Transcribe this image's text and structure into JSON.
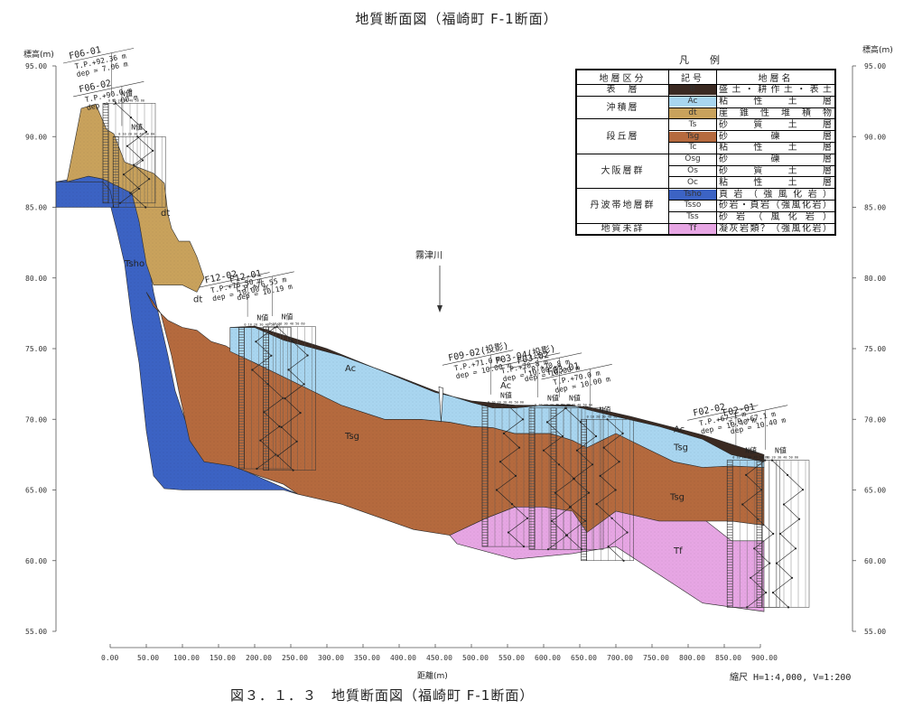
{
  "title": "地質断面図（福崎町 F-1断面）",
  "caption": "図３．１．３　地質断面図（福崎町 F-1断面）",
  "scale": "縮尺 H=1:4,000, V=1:200",
  "y_axis_left_label": "標高(m)",
  "y_axis_right_label": "標高(m)",
  "x_axis_label": "距離(m)",
  "river_label": "霧津川",
  "legend": {
    "title": "凡　例",
    "headers": [
      "地層区分",
      "記号",
      "地層名"
    ],
    "groups": [
      {
        "group": "表　層",
        "rows": [
          {
            "symbol": "B",
            "name": "盛土・耕作土・表土",
            "color": "#3b2a22"
          }
        ]
      },
      {
        "group": "沖積層",
        "rows": [
          {
            "symbol": "Ac",
            "name": "粘性土層",
            "color": "#a9d6f0"
          },
          {
            "symbol": "dt",
            "name": "崖錐性堆積物",
            "color": "#c9a25c"
          }
        ]
      },
      {
        "group": "段丘層",
        "rows": [
          {
            "symbol": "Ts",
            "name": "砂質土層",
            "color": "#ffffff"
          },
          {
            "symbol": "Tsg",
            "name": "砂礫層",
            "color": "#b56a3e"
          },
          {
            "symbol": "Tc",
            "name": "粘性土層",
            "color": "#ffffff"
          }
        ]
      },
      {
        "group": "大阪層群",
        "rows": [
          {
            "symbol": "Osg",
            "name": "砂礫層",
            "color": "#ffffff"
          },
          {
            "symbol": "Os",
            "name": "砂質土層",
            "color": "#ffffff"
          },
          {
            "symbol": "Oc",
            "name": "粘性土層",
            "color": "#ffffff"
          }
        ]
      },
      {
        "group": "丹波帯地層群",
        "rows": [
          {
            "symbol": "Tsho",
            "name": "頁岩（強風化岩）",
            "color": "#3c63c4"
          },
          {
            "symbol": "Tsso",
            "name": "砂岩・頁岩（強風化岩）",
            "color": "#ffffff"
          },
          {
            "symbol": "Tss",
            "name": "砂岩（風化岩）",
            "color": "#ffffff"
          }
        ]
      },
      {
        "group": "地質未詳",
        "rows": [
          {
            "symbol": "Tf",
            "name": "凝灰岩類？（強風化岩）",
            "color": "#e7a6e4"
          }
        ]
      }
    ]
  },
  "chart_data": {
    "type": "diagram",
    "x_ticks": [
      "0.00",
      "50.00",
      "100.00",
      "150.00",
      "200.00",
      "250.00",
      "300.00",
      "350.00",
      "400.00",
      "450.00",
      "500.00",
      "550.00",
      "600.00",
      "650.00",
      "700.00",
      "750.00",
      "800.00",
      "850.00",
      "900.00"
    ],
    "y_ticks": [
      "95.00",
      "90.00",
      "85.00",
      "80.00",
      "75.00",
      "70.00",
      "65.00",
      "60.00",
      "55.00"
    ],
    "ylim": [
      55,
      95
    ],
    "xlim": [
      0,
      900
    ]
  },
  "layer_labels": [
    {
      "text": "Tsho",
      "x": 20,
      "y": 80.8
    },
    {
      "text": "dt",
      "x": 70,
      "y": 84.4
    },
    {
      "text": "dt",
      "x": 115,
      "y": 78.3
    },
    {
      "text": "Ac",
      "x": 325,
      "y": 73.4
    },
    {
      "text": "Ac",
      "x": 540,
      "y": 72.2
    },
    {
      "text": "Tsg",
      "x": 325,
      "y": 68.6
    },
    {
      "text": "Tsg",
      "x": 780,
      "y": 67.8
    },
    {
      "text": "Ac",
      "x": 780,
      "y": 69.1
    },
    {
      "text": "Tsg",
      "x": 775,
      "y": 64.3
    },
    {
      "text": "Tf",
      "x": 780,
      "y": 60.5
    }
  ],
  "boreholes": [
    {
      "id": "F06-01",
      "tp": "T.P.+92.36 m",
      "dep": "dep = 7.06 m",
      "x": 0,
      "top": 92.36,
      "bottom": 85.3
    },
    {
      "id": "F06-02",
      "tp": "T.P.+90.0 m",
      "dep": "dep = 5.00 m",
      "x": 14,
      "top": 90.0,
      "bottom": 85.0
    },
    {
      "id": "F12-02",
      "tp": "T.P.+76.50 m",
      "dep": "dep = 10.00 m",
      "x": 188,
      "top": 76.5,
      "bottom": 66.5
    },
    {
      "id": "F12-01",
      "tp": "T.P.+76.55 m",
      "dep": "dep = 10.19 m",
      "x": 222,
      "top": 76.55,
      "bottom": 66.4
    },
    {
      "id": "F09-02(投影)",
      "tp": "T.P.+71.0 m",
      "dep": "dep = 10.00 m",
      "x": 525,
      "top": 71.0,
      "bottom": 61.0
    },
    {
      "id": "F03-04(投影)",
      "tp": "T.P.+70.8 m",
      "dep": "dep = 10.00 m",
      "x": 590,
      "top": 70.8,
      "bottom": 60.8
    },
    {
      "id": "F03-02",
      "tp": "T.P.+70.8 m",
      "dep": "dep = 10.00 m",
      "x": 620,
      "top": 70.8,
      "bottom": 60.8
    },
    {
      "id": "F03-01",
      "tp": "T.P.+70.0 m",
      "dep": "dep = 10.00 m",
      "x": 662,
      "top": 70.0,
      "bottom": 60.0
    },
    {
      "id": "F02-02",
      "tp": "T.P.+67.1 m",
      "dep": "dep = 10.40 m",
      "x": 864,
      "top": 67.1,
      "bottom": 56.7
    },
    {
      "id": "F02-01",
      "tp": "T.P.+67.1 m",
      "dep": "dep = 10.40 m",
      "x": 905,
      "top": 67.1,
      "bottom": 56.7
    }
  ],
  "n_value_label": "N値",
  "n_value_scale": "0 10 20 30 40 50 60",
  "colors": {
    "Tsho": "#3c63c4",
    "dt": "#c9a25c",
    "Tsg": "#b56a3e",
    "Ac": "#a9d6f0",
    "Tf": "#e7a6e4",
    "B": "#3b2a22"
  }
}
